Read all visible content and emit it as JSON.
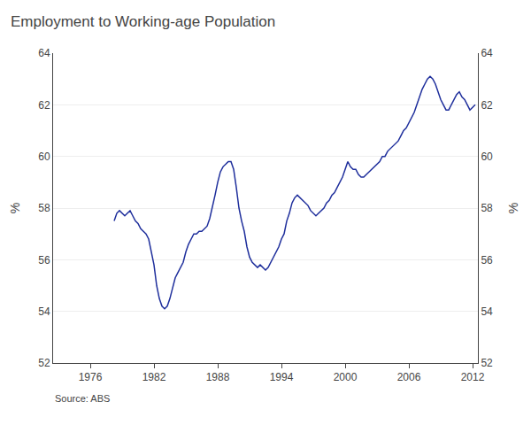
{
  "chart_data": {
    "type": "line",
    "title": "Employment to Working-age Population",
    "ylabel": "%",
    "y2label": "%",
    "annotations": [
      "Source: ABS"
    ],
    "color": "#1f2f9c",
    "grid": true,
    "xlim": [
      1972.5,
      2012.5
    ],
    "xticks": [
      1976,
      1982,
      1988,
      1994,
      2000,
      2006,
      2012
    ],
    "ylim": [
      52,
      64
    ],
    "yticks": [
      52,
      54,
      56,
      58,
      60,
      62,
      64
    ],
    "y2lim": [
      52,
      64
    ],
    "y2ticks": [
      52,
      54,
      56,
      58,
      60,
      62,
      64
    ],
    "x": [
      1978.25,
      1978.5,
      1978.75,
      1979.0,
      1979.25,
      1979.5,
      1979.75,
      1980.0,
      1980.25,
      1980.5,
      1980.75,
      1981.0,
      1981.25,
      1981.5,
      1981.75,
      1982.0,
      1982.25,
      1982.5,
      1982.75,
      1983.0,
      1983.25,
      1983.5,
      1983.75,
      1984.0,
      1984.25,
      1984.5,
      1984.75,
      1985.0,
      1985.25,
      1985.5,
      1985.75,
      1986.0,
      1986.25,
      1986.5,
      1986.75,
      1987.0,
      1987.25,
      1987.5,
      1987.75,
      1988.0,
      1988.25,
      1988.5,
      1988.75,
      1989.0,
      1989.25,
      1989.5,
      1989.75,
      1990.0,
      1990.25,
      1990.5,
      1990.75,
      1991.0,
      1991.25,
      1991.5,
      1991.75,
      1992.0,
      1992.25,
      1992.5,
      1992.75,
      1993.0,
      1993.25,
      1993.5,
      1993.75,
      1994.0,
      1994.25,
      1994.5,
      1994.75,
      1995.0,
      1995.25,
      1995.5,
      1995.75,
      1996.0,
      1996.25,
      1996.5,
      1996.75,
      1997.0,
      1997.25,
      1997.5,
      1997.75,
      1998.0,
      1998.25,
      1998.5,
      1998.75,
      1999.0,
      1999.25,
      1999.5,
      1999.75,
      2000.0,
      2000.25,
      2000.5,
      2000.75,
      2001.0,
      2001.25,
      2001.5,
      2001.75,
      2002.0,
      2002.25,
      2002.5,
      2002.75,
      2003.0,
      2003.25,
      2003.5,
      2003.75,
      2004.0,
      2004.25,
      2004.5,
      2004.75,
      2005.0,
      2005.25,
      2005.5,
      2005.75,
      2006.0,
      2006.25,
      2006.5,
      2006.75,
      2007.0,
      2007.25,
      2007.5,
      2007.75,
      2008.0,
      2008.25,
      2008.5,
      2008.75,
      2009.0,
      2009.25,
      2009.5,
      2009.75,
      2010.0,
      2010.25,
      2010.5,
      2010.75,
      2011.0,
      2011.25,
      2011.5,
      2011.75,
      2012.0,
      2012.25
    ],
    "values": [
      57.5,
      57.8,
      57.9,
      57.8,
      57.7,
      57.8,
      57.9,
      57.7,
      57.5,
      57.4,
      57.2,
      57.1,
      57.0,
      56.8,
      56.3,
      55.8,
      55.0,
      54.5,
      54.2,
      54.1,
      54.2,
      54.5,
      54.9,
      55.3,
      55.5,
      55.7,
      55.9,
      56.3,
      56.6,
      56.8,
      57.0,
      57.0,
      57.1,
      57.1,
      57.2,
      57.3,
      57.6,
      58.0,
      58.5,
      59.0,
      59.4,
      59.6,
      59.7,
      59.8,
      59.8,
      59.5,
      58.8,
      58.0,
      57.5,
      57.1,
      56.5,
      56.1,
      55.9,
      55.8,
      55.7,
      55.8,
      55.7,
      55.6,
      55.7,
      55.9,
      56.1,
      56.3,
      56.5,
      56.8,
      57.0,
      57.5,
      57.8,
      58.2,
      58.4,
      58.5,
      58.4,
      58.3,
      58.2,
      58.1,
      57.9,
      57.8,
      57.7,
      57.8,
      57.9,
      58.0,
      58.2,
      58.3,
      58.5,
      58.6,
      58.8,
      59.0,
      59.2,
      59.5,
      59.8,
      59.6,
      59.5,
      59.5,
      59.3,
      59.2,
      59.2,
      59.3,
      59.4,
      59.5,
      59.6,
      59.7,
      59.8,
      60.0,
      60.0,
      60.2,
      60.3,
      60.4,
      60.5,
      60.6,
      60.8,
      61.0,
      61.1,
      61.3,
      61.5,
      61.7,
      62.0,
      62.3,
      62.6,
      62.8,
      63.0,
      63.1,
      63.0,
      62.8,
      62.5,
      62.2,
      62.0,
      61.8,
      61.8,
      62.0,
      62.2,
      62.4,
      62.5,
      62.3,
      62.2,
      62.0,
      61.8,
      61.9,
      62.0
    ]
  }
}
